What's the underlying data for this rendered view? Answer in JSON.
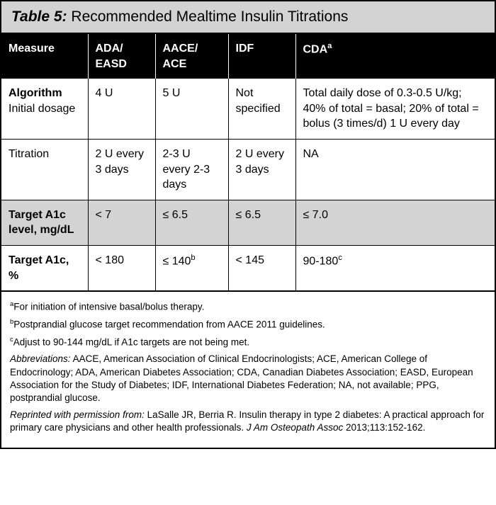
{
  "title": {
    "label": "Table 5:",
    "text": " Recommended Mealtime Insulin Titrations"
  },
  "headers": {
    "measure": "Measure",
    "ada": "ADA/\nEASD",
    "aace": "AACE/\nACE",
    "idf": "IDF",
    "cda": "CDA",
    "cda_sup": "a"
  },
  "rows": {
    "algorithm": {
      "label_bold": "Algorithm",
      "label_sub": "Initial dosage",
      "ada": "4 U",
      "aace": "5 U",
      "idf": "Not specified",
      "cda": "Total daily dose of 0.3-0.5 U/kg; 40% of total = basal; 20% of total = bolus (3 times/d) 1 U every day"
    },
    "titration": {
      "label": "Titration",
      "ada": "2 U every 3 days",
      "aace": "2-3 U every 2-3 days",
      "idf": "2 U every 3 days",
      "cda": "NA"
    },
    "a1c_level": {
      "label": "Target A1c level, mg/dL",
      "ada": "< 7",
      "aace": "≤ 6.5",
      "idf": "≤ 6.5",
      "cda": "≤ 7.0"
    },
    "a1c_pct": {
      "label": "Target A1c, %",
      "ada": "< 180",
      "aace": "≤ 140",
      "aace_sup": "b",
      "idf": "< 145",
      "cda": "90-180",
      "cda_sup": "c"
    }
  },
  "footnotes": {
    "a": {
      "sup": "a",
      "text": "For initiation of intensive basal/bolus therapy."
    },
    "b": {
      "sup": "b",
      "text": "Postprandial glucose target recommendation from AACE 2011 guidelines."
    },
    "c": {
      "sup": "c",
      "text": "Adjust to 90-144 mg/dL if A1c targets are not being met."
    },
    "abbrev": {
      "label": "Abbreviations:",
      "text": " AACE, American Association of Clinical Endocrinologists; ACE, American College of Endocrinology; ADA, American Diabetes Association; CDA, Canadian Diabetes Association; EASD, European Association for the Study of Diabetes; IDF, International Diabetes Federation; NA, not available; PPG, postprandial glucose."
    },
    "reprint": {
      "label": "Reprinted with permission from:",
      "text": " LaSalle JR, Berria R. Insulin therapy in type 2 diabetes: A practical approach for primary care physicians and other health professionals. ",
      "journal": "J Am Osteopath Assoc",
      "tail": " 2013;113:152-162."
    }
  }
}
